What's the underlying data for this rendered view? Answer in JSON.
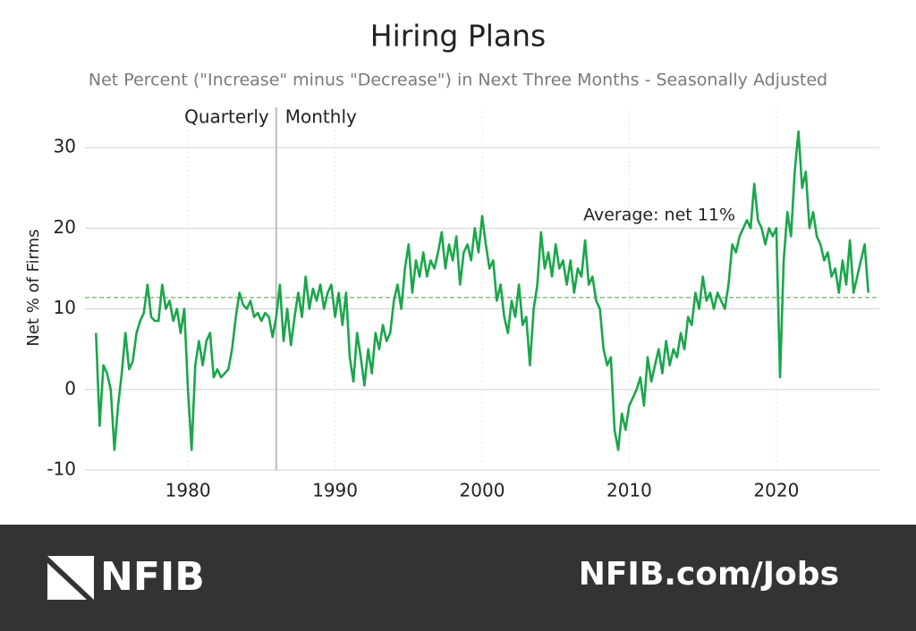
{
  "chart_data": {
    "type": "line",
    "title": "Hiring Plans",
    "subtitle": "Net Percent (\"Increase\" minus \"Decrease\") in Next Three Months - Seasonally Adjusted",
    "y_label": "Net % of Firms",
    "color": "#1aa64b",
    "grid": true,
    "xlim": [
      1973,
      2027
    ],
    "xticks": [
      1980,
      1990,
      2000,
      2010,
      2020
    ],
    "ylim": [
      -10,
      35
    ],
    "yticks": [
      -10,
      0,
      10,
      20,
      30
    ],
    "average_line": 11.4,
    "average_label": "Average: net 11%",
    "divider_x": 1986,
    "divider_left_label": "Quarterly",
    "divider_right_label": "Monthly",
    "x": [
      1973.75,
      1974,
      1974.25,
      1974.5,
      1974.75,
      1975,
      1975.25,
      1975.5,
      1975.75,
      1976,
      1976.25,
      1976.5,
      1976.75,
      1977,
      1977.25,
      1977.5,
      1977.75,
      1978,
      1978.25,
      1978.5,
      1978.75,
      1979,
      1979.25,
      1979.5,
      1979.75,
      1980,
      1980.25,
      1980.5,
      1980.75,
      1981,
      1981.25,
      1981.5,
      1981.75,
      1982,
      1982.25,
      1982.5,
      1982.75,
      1983,
      1983.25,
      1983.5,
      1983.75,
      1984,
      1984.25,
      1984.5,
      1984.75,
      1985,
      1985.25,
      1985.5,
      1985.75,
      1986,
      1986.25,
      1986.5,
      1986.75,
      1987,
      1987.25,
      1987.5,
      1987.75,
      1988,
      1988.25,
      1988.5,
      1988.75,
      1989,
      1989.25,
      1989.5,
      1989.75,
      1990,
      1990.25,
      1990.5,
      1990.75,
      1991,
      1991.25,
      1991.5,
      1991.75,
      1992,
      1992.25,
      1992.5,
      1992.75,
      1993,
      1993.25,
      1993.5,
      1993.75,
      1994,
      1994.25,
      1994.5,
      1994.75,
      1995,
      1995.25,
      1995.5,
      1995.75,
      1996,
      1996.25,
      1996.5,
      1996.75,
      1997,
      1997.25,
      1997.5,
      1997.75,
      1998,
      1998.25,
      1998.5,
      1998.75,
      1999,
      1999.25,
      1999.5,
      1999.75,
      2000,
      2000.25,
      2000.5,
      2000.75,
      2001,
      2001.25,
      2001.5,
      2001.75,
      2002,
      2002.25,
      2002.5,
      2002.75,
      2003,
      2003.25,
      2003.5,
      2003.75,
      2004,
      2004.25,
      2004.5,
      2004.75,
      2005,
      2005.25,
      2005.5,
      2005.75,
      2006,
      2006.25,
      2006.5,
      2006.75,
      2007,
      2007.25,
      2007.5,
      2007.75,
      2008,
      2008.25,
      2008.5,
      2008.75,
      2009,
      2009.25,
      2009.5,
      2009.75,
      2010,
      2010.25,
      2010.5,
      2010.75,
      2011,
      2011.25,
      2011.5,
      2011.75,
      2012,
      2012.25,
      2012.5,
      2012.75,
      2013,
      2013.25,
      2013.5,
      2013.75,
      2014,
      2014.25,
      2014.5,
      2014.75,
      2015,
      2015.25,
      2015.5,
      2015.75,
      2016,
      2016.25,
      2016.5,
      2016.75,
      2017,
      2017.25,
      2017.5,
      2017.75,
      2018,
      2018.25,
      2018.5,
      2018.75,
      2019,
      2019.25,
      2019.5,
      2019.75,
      2020,
      2020.25,
      2020.5,
      2020.75,
      2021,
      2021.25,
      2021.5,
      2021.75,
      2022,
      2022.25,
      2022.5,
      2022.75,
      2023,
      2023.25,
      2023.5,
      2023.75,
      2024,
      2024.25,
      2024.5,
      2024.75,
      2025,
      2025.25,
      2025.5,
      2025.75,
      2026,
      2026.25
    ],
    "values": [
      7,
      -4.5,
      3,
      2,
      0,
      -7.5,
      -2,
      2,
      7,
      2.5,
      3.5,
      7,
      8.5,
      9.5,
      13,
      9,
      8.5,
      8.5,
      13,
      10,
      11,
      8.5,
      10,
      7,
      10,
      0,
      -7.5,
      3,
      6,
      3,
      6,
      7,
      1.5,
      2.5,
      1.5,
      2,
      2.5,
      5,
      9,
      12,
      10.5,
      10,
      11,
      9,
      9.5,
      8.5,
      9.5,
      9,
      6.5,
      9,
      13,
      6,
      10,
      5.5,
      9,
      12,
      9,
      14,
      10,
      12.5,
      11,
      13,
      10,
      12,
      13,
      9,
      12,
      8,
      12,
      4,
      1,
      7,
      4,
      0.5,
      5,
      2,
      7,
      5,
      8,
      6,
      7,
      11,
      13,
      10,
      15,
      18,
      12,
      16,
      14,
      17,
      14,
      16,
      15,
      17,
      19.5,
      15,
      18,
      16,
      19,
      13,
      17,
      18,
      16,
      20,
      17,
      21.5,
      18,
      15,
      16,
      11,
      13,
      9,
      7,
      11,
      9,
      13,
      8,
      9,
      3,
      10,
      13,
      19.5,
      15,
      17,
      14,
      18,
      15,
      16,
      13,
      16,
      12,
      15,
      14,
      18.5,
      13,
      14,
      11,
      10,
      5,
      3,
      4,
      -5,
      -7.5,
      -3,
      -5,
      -2,
      -1,
      0,
      1.5,
      -2,
      4,
      1,
      3,
      5,
      2,
      6,
      3,
      5,
      4,
      7,
      5,
      9,
      8,
      12,
      10,
      14,
      11,
      12,
      10,
      12,
      11,
      10,
      13,
      18,
      17,
      19,
      20,
      21,
      20,
      25.5,
      21,
      20,
      18,
      20,
      19,
      20,
      1.5,
      16,
      22,
      19,
      27,
      32,
      25,
      27,
      20,
      22,
      19,
      18,
      16,
      17,
      14,
      15,
      12,
      16,
      13,
      18.5,
      12,
      14,
      16,
      18,
      12
    ]
  },
  "footer": {
    "logo": "NFIB",
    "url": "NFIB.com/Jobs"
  }
}
